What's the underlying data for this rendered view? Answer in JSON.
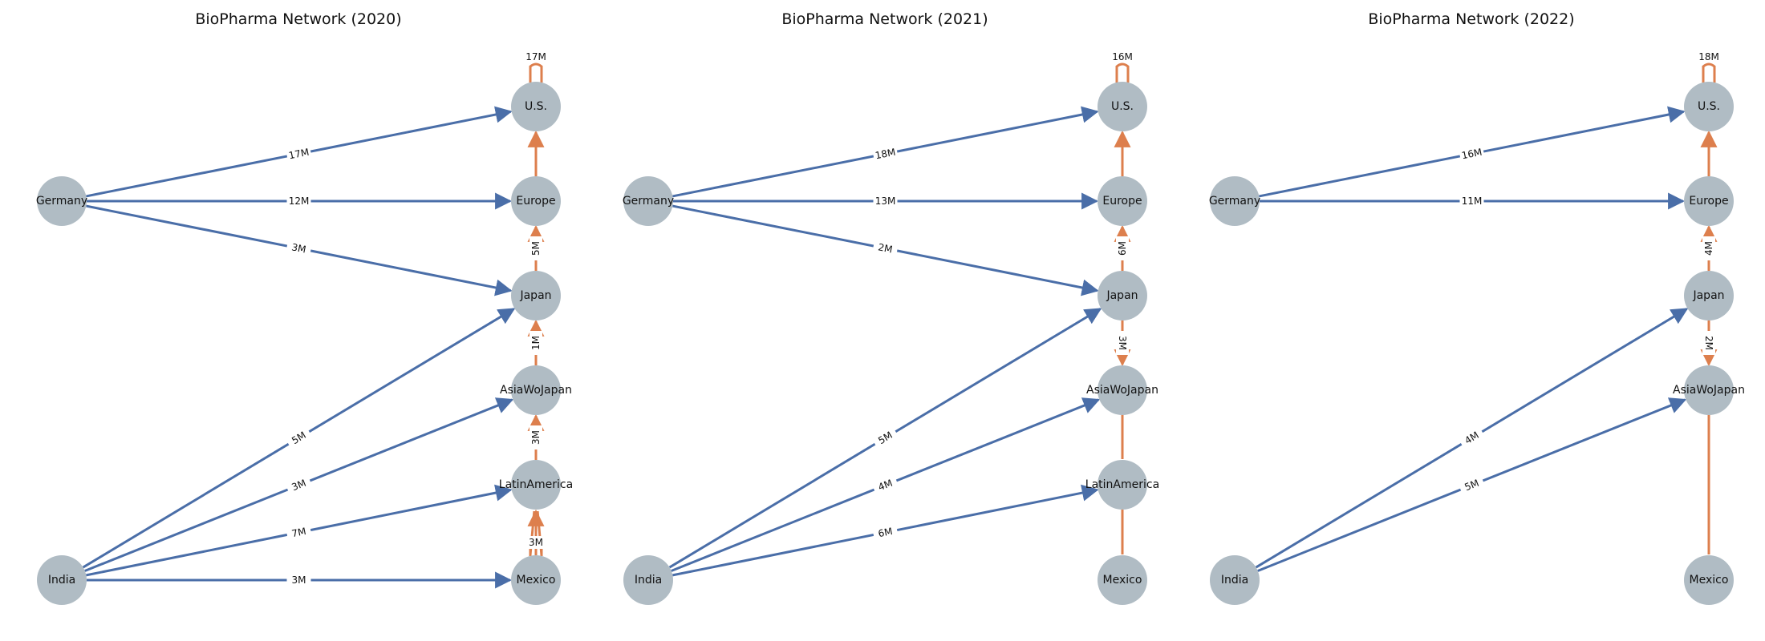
{
  "colors": {
    "export_edge": "#4a6ea8",
    "regional_edge": "#dd7f4d",
    "node_fill": "#b0bcc4"
  },
  "node_names": [
    "Germany",
    "India",
    "U.S.",
    "Europe",
    "Japan",
    "AsiaWoJapan",
    "LatinAmerica",
    "Mexico"
  ],
  "panels": [
    {
      "title": "BioPharma Network (2020)",
      "edges": [
        {
          "source": "Germany",
          "target": "U.S.",
          "label": "17M",
          "kind": "export"
        },
        {
          "source": "Germany",
          "target": "Europe",
          "label": "12M",
          "kind": "export"
        },
        {
          "source": "Germany",
          "target": "Japan",
          "label": "3M",
          "kind": "export"
        },
        {
          "source": "India",
          "target": "Japan",
          "label": "5M",
          "kind": "export"
        },
        {
          "source": "India",
          "target": "AsiaWoJapan",
          "label": "3M",
          "kind": "export"
        },
        {
          "source": "India",
          "target": "LatinAmerica",
          "label": "7M",
          "kind": "export"
        },
        {
          "source": "India",
          "target": "Mexico",
          "label": "3M",
          "kind": "export"
        },
        {
          "source": "U.S.",
          "target": "U.S.",
          "label": "17M",
          "kind": "self"
        },
        {
          "source": "Europe",
          "target": "U.S.",
          "label": "",
          "kind": "regional"
        },
        {
          "source": "Japan",
          "target": "Europe",
          "label": "5M",
          "kind": "regional"
        },
        {
          "source": "AsiaWoJapan",
          "target": "Japan",
          "label": "1M",
          "kind": "regional"
        },
        {
          "source": "LatinAmerica",
          "target": "AsiaWoJapan",
          "label": "3M",
          "kind": "regional"
        },
        {
          "source": "Mexico",
          "target": "LatinAmerica",
          "label": "3M",
          "kind": "regional"
        },
        {
          "source": "Mexico",
          "target": "Mexico",
          "label": "",
          "kind": "self"
        }
      ]
    },
    {
      "title": "BioPharma Network (2021)",
      "edges": [
        {
          "source": "Germany",
          "target": "U.S.",
          "label": "18M",
          "kind": "export"
        },
        {
          "source": "Germany",
          "target": "Europe",
          "label": "13M",
          "kind": "export"
        },
        {
          "source": "Germany",
          "target": "Japan",
          "label": "2M",
          "kind": "export"
        },
        {
          "source": "India",
          "target": "Japan",
          "label": "5M",
          "kind": "export"
        },
        {
          "source": "India",
          "target": "AsiaWoJapan",
          "label": "4M",
          "kind": "export"
        },
        {
          "source": "India",
          "target": "LatinAmerica",
          "label": "6M",
          "kind": "export"
        },
        {
          "source": "U.S.",
          "target": "U.S.",
          "label": "16M",
          "kind": "self"
        },
        {
          "source": "Europe",
          "target": "U.S.",
          "label": "",
          "kind": "regional"
        },
        {
          "source": "Japan",
          "target": "Europe",
          "label": "6M",
          "kind": "regional"
        },
        {
          "source": "Japan",
          "target": "AsiaWoJapan",
          "label": "3M",
          "kind": "regional"
        },
        {
          "source": "AsiaWoJapan",
          "target": "LatinAmerica",
          "label": "",
          "kind": "line"
        },
        {
          "source": "LatinAmerica",
          "target": "Mexico",
          "label": "",
          "kind": "line"
        }
      ]
    },
    {
      "title": "BioPharma Network (2022)",
      "edges": [
        {
          "source": "Germany",
          "target": "U.S.",
          "label": "16M",
          "kind": "export"
        },
        {
          "source": "Germany",
          "target": "Europe",
          "label": "11M",
          "kind": "export"
        },
        {
          "source": "India",
          "target": "Japan",
          "label": "4M",
          "kind": "export"
        },
        {
          "source": "India",
          "target": "AsiaWoJapan",
          "label": "5M",
          "kind": "export"
        },
        {
          "source": "U.S.",
          "target": "U.S.",
          "label": "18M",
          "kind": "self"
        },
        {
          "source": "Europe",
          "target": "U.S.",
          "label": "",
          "kind": "regional"
        },
        {
          "source": "Japan",
          "target": "Europe",
          "label": "4M",
          "kind": "regional"
        },
        {
          "source": "Japan",
          "target": "AsiaWoJapan",
          "label": "2M",
          "kind": "regional"
        },
        {
          "source": "AsiaWoJapan",
          "target": "Mexico",
          "label": "",
          "kind": "line"
        }
      ]
    }
  ]
}
